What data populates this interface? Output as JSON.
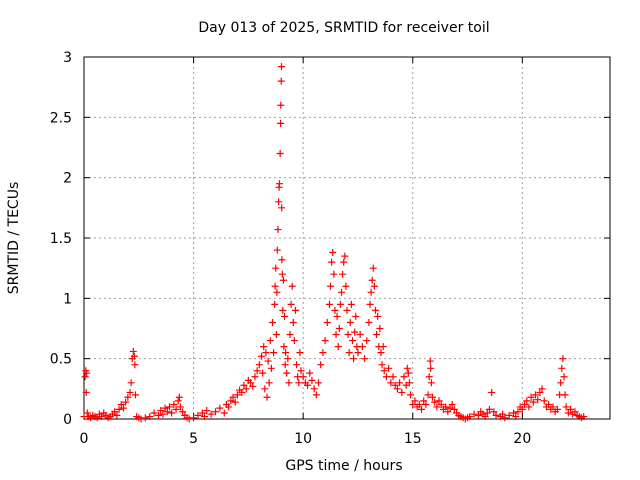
{
  "chart_data": {
    "type": "scatter",
    "title": "Day 013 of 2025, SRMTID for receiver toil",
    "xlabel": "GPS time / hours",
    "ylabel": "SRMTID / TECUs",
    "xlim": [
      0,
      24
    ],
    "ylim": [
      0,
      3
    ],
    "xticks": [
      0,
      5,
      10,
      15,
      20
    ],
    "yticks": [
      0,
      0.5,
      1,
      1.5,
      2,
      2.5,
      3
    ],
    "ytick_labels": [
      "0",
      "0.5",
      "1",
      "1.5",
      "2",
      "2.5",
      "3"
    ],
    "grid": true,
    "marker": "+",
    "color": "#ff0000",
    "series": [
      {
        "name": "SRMTID",
        "points": [
          [
            0.0,
            0.02
          ],
          [
            0.05,
            0.35
          ],
          [
            0.08,
            0.4
          ],
          [
            0.1,
            0.22
          ],
          [
            0.12,
            0.38
          ],
          [
            0.15,
            0.05
          ],
          [
            0.2,
            0.02
          ],
          [
            0.3,
            0.01
          ],
          [
            0.4,
            0.03
          ],
          [
            0.5,
            0.02
          ],
          [
            0.6,
            0.01
          ],
          [
            0.7,
            0.04
          ],
          [
            0.8,
            0.02
          ],
          [
            0.9,
            0.05
          ],
          [
            1.0,
            0.03
          ],
          [
            1.1,
            0.01
          ],
          [
            1.2,
            0.02
          ],
          [
            1.3,
            0.04
          ],
          [
            1.4,
            0.06
          ],
          [
            1.5,
            0.03
          ],
          [
            1.6,
            0.08
          ],
          [
            1.7,
            0.12
          ],
          [
            1.8,
            0.09
          ],
          [
            1.9,
            0.14
          ],
          [
            2.0,
            0.18
          ],
          [
            2.1,
            0.22
          ],
          [
            2.15,
            0.3
          ],
          [
            2.2,
            0.5
          ],
          [
            2.25,
            0.56
          ],
          [
            2.3,
            0.52
          ],
          [
            2.32,
            0.45
          ],
          [
            2.35,
            0.2
          ],
          [
            2.4,
            0.02
          ],
          [
            2.5,
            0.01
          ],
          [
            2.6,
            0.0
          ],
          [
            2.8,
            0.01
          ],
          [
            3.0,
            0.02
          ],
          [
            3.2,
            0.05
          ],
          [
            3.4,
            0.03
          ],
          [
            3.5,
            0.07
          ],
          [
            3.6,
            0.04
          ],
          [
            3.7,
            0.09
          ],
          [
            3.8,
            0.06
          ],
          [
            3.9,
            0.1
          ],
          [
            4.0,
            0.05
          ],
          [
            4.1,
            0.12
          ],
          [
            4.2,
            0.08
          ],
          [
            4.3,
            0.15
          ],
          [
            4.35,
            0.18
          ],
          [
            4.4,
            0.1
          ],
          [
            4.5,
            0.06
          ],
          [
            4.6,
            0.03
          ],
          [
            4.7,
            0.01
          ],
          [
            4.8,
            0.0
          ],
          [
            5.0,
            0.01
          ],
          [
            5.2,
            0.03
          ],
          [
            5.4,
            0.05
          ],
          [
            5.5,
            0.02
          ],
          [
            5.6,
            0.07
          ],
          [
            5.8,
            0.04
          ],
          [
            6.0,
            0.06
          ],
          [
            6.2,
            0.09
          ],
          [
            6.4,
            0.05
          ],
          [
            6.5,
            0.12
          ],
          [
            6.6,
            0.1
          ],
          [
            6.7,
            0.15
          ],
          [
            6.8,
            0.18
          ],
          [
            6.9,
            0.14
          ],
          [
            7.0,
            0.2
          ],
          [
            7.1,
            0.24
          ],
          [
            7.2,
            0.22
          ],
          [
            7.3,
            0.28
          ],
          [
            7.4,
            0.25
          ],
          [
            7.5,
            0.32
          ],
          [
            7.6,
            0.3
          ],
          [
            7.7,
            0.27
          ],
          [
            7.8,
            0.35
          ],
          [
            7.9,
            0.4
          ],
          [
            8.0,
            0.45
          ],
          [
            8.1,
            0.52
          ],
          [
            8.15,
            0.38
          ],
          [
            8.2,
            0.6
          ],
          [
            8.25,
            0.25
          ],
          [
            8.3,
            0.55
          ],
          [
            8.35,
            0.18
          ],
          [
            8.4,
            0.48
          ],
          [
            8.45,
            0.3
          ],
          [
            8.5,
            0.65
          ],
          [
            8.55,
            0.42
          ],
          [
            8.6,
            0.8
          ],
          [
            8.65,
            0.55
          ],
          [
            8.7,
            0.95
          ],
          [
            8.72,
            1.1
          ],
          [
            8.75,
            1.25
          ],
          [
            8.78,
            0.7
          ],
          [
            8.8,
            1.05
          ],
          [
            8.82,
            1.4
          ],
          [
            8.85,
            1.57
          ],
          [
            8.88,
            1.8
          ],
          [
            8.9,
            1.92
          ],
          [
            8.92,
            1.95
          ],
          [
            8.95,
            2.2
          ],
          [
            8.97,
            2.45
          ],
          [
            8.98,
            2.6
          ],
          [
            9.0,
            2.8
          ],
          [
            9.01,
            2.92
          ],
          [
            9.02,
            1.75
          ],
          [
            9.03,
            1.32
          ],
          [
            9.05,
            1.2
          ],
          [
            9.07,
            0.9
          ],
          [
            9.1,
            1.15
          ],
          [
            9.12,
            0.6
          ],
          [
            9.15,
            0.85
          ],
          [
            9.18,
            0.45
          ],
          [
            9.2,
            0.55
          ],
          [
            9.25,
            0.38
          ],
          [
            9.3,
            0.5
          ],
          [
            9.35,
            0.3
          ],
          [
            9.4,
            0.7
          ],
          [
            9.45,
            0.95
          ],
          [
            9.5,
            1.1
          ],
          [
            9.55,
            0.8
          ],
          [
            9.6,
            0.65
          ],
          [
            9.65,
            0.9
          ],
          [
            9.7,
            0.45
          ],
          [
            9.75,
            0.35
          ],
          [
            9.8,
            0.3
          ],
          [
            9.85,
            0.55
          ],
          [
            9.9,
            0.4
          ],
          [
            10.0,
            0.35
          ],
          [
            10.1,
            0.3
          ],
          [
            10.2,
            0.28
          ],
          [
            10.3,
            0.38
          ],
          [
            10.4,
            0.32
          ],
          [
            10.5,
            0.25
          ],
          [
            10.6,
            0.2
          ],
          [
            10.7,
            0.3
          ],
          [
            10.8,
            0.45
          ],
          [
            10.9,
            0.55
          ],
          [
            11.0,
            0.65
          ],
          [
            11.1,
            0.8
          ],
          [
            11.2,
            0.95
          ],
          [
            11.25,
            1.1
          ],
          [
            11.3,
            1.3
          ],
          [
            11.35,
            1.38
          ],
          [
            11.4,
            1.2
          ],
          [
            11.45,
            0.9
          ],
          [
            11.5,
            0.7
          ],
          [
            11.55,
            0.85
          ],
          [
            11.6,
            0.6
          ],
          [
            11.65,
            0.75
          ],
          [
            11.7,
            0.95
          ],
          [
            11.75,
            1.05
          ],
          [
            11.8,
            1.2
          ],
          [
            11.85,
            1.3
          ],
          [
            11.9,
            1.35
          ],
          [
            11.95,
            1.1
          ],
          [
            12.0,
            0.9
          ],
          [
            12.05,
            0.7
          ],
          [
            12.1,
            0.55
          ],
          [
            12.15,
            0.8
          ],
          [
            12.2,
            0.95
          ],
          [
            12.25,
            0.65
          ],
          [
            12.3,
            0.5
          ],
          [
            12.35,
            0.72
          ],
          [
            12.4,
            0.85
          ],
          [
            12.45,
            0.6
          ],
          [
            12.5,
            0.55
          ],
          [
            12.6,
            0.7
          ],
          [
            12.7,
            0.6
          ],
          [
            12.8,
            0.5
          ],
          [
            12.9,
            0.65
          ],
          [
            13.0,
            0.8
          ],
          [
            13.05,
            0.95
          ],
          [
            13.1,
            1.05
          ],
          [
            13.15,
            1.15
          ],
          [
            13.2,
            1.25
          ],
          [
            13.25,
            1.1
          ],
          [
            13.3,
            0.9
          ],
          [
            13.35,
            0.7
          ],
          [
            13.4,
            0.85
          ],
          [
            13.45,
            0.6
          ],
          [
            13.5,
            0.75
          ],
          [
            13.55,
            0.55
          ],
          [
            13.6,
            0.45
          ],
          [
            13.65,
            0.6
          ],
          [
            13.7,
            0.4
          ],
          [
            13.8,
            0.35
          ],
          [
            13.9,
            0.42
          ],
          [
            14.0,
            0.3
          ],
          [
            14.1,
            0.35
          ],
          [
            14.2,
            0.28
          ],
          [
            14.3,
            0.25
          ],
          [
            14.4,
            0.3
          ],
          [
            14.5,
            0.22
          ],
          [
            14.6,
            0.35
          ],
          [
            14.7,
            0.28
          ],
          [
            14.75,
            0.42
          ],
          [
            14.8,
            0.38
          ],
          [
            14.85,
            0.3
          ],
          [
            14.9,
            0.2
          ],
          [
            15.0,
            0.12
          ],
          [
            15.1,
            0.15
          ],
          [
            15.2,
            0.1
          ],
          [
            15.3,
            0.12
          ],
          [
            15.4,
            0.08
          ],
          [
            15.5,
            0.15
          ],
          [
            15.6,
            0.12
          ],
          [
            15.7,
            0.2
          ],
          [
            15.75,
            0.35
          ],
          [
            15.8,
            0.48
          ],
          [
            15.82,
            0.42
          ],
          [
            15.85,
            0.3
          ],
          [
            15.9,
            0.18
          ],
          [
            16.0,
            0.14
          ],
          [
            16.1,
            0.1
          ],
          [
            16.2,
            0.15
          ],
          [
            16.3,
            0.12
          ],
          [
            16.4,
            0.08
          ],
          [
            16.5,
            0.1
          ],
          [
            16.6,
            0.06
          ],
          [
            16.7,
            0.09
          ],
          [
            16.8,
            0.12
          ],
          [
            16.9,
            0.08
          ],
          [
            17.0,
            0.05
          ],
          [
            17.1,
            0.03
          ],
          [
            17.2,
            0.02
          ],
          [
            17.3,
            0.01
          ],
          [
            17.4,
            0.0
          ],
          [
            17.5,
            0.01
          ],
          [
            17.6,
            0.02
          ],
          [
            17.8,
            0.04
          ],
          [
            18.0,
            0.03
          ],
          [
            18.1,
            0.06
          ],
          [
            18.2,
            0.04
          ],
          [
            18.3,
            0.02
          ],
          [
            18.4,
            0.05
          ],
          [
            18.5,
            0.08
          ],
          [
            18.6,
            0.22
          ],
          [
            18.7,
            0.06
          ],
          [
            18.8,
            0.03
          ],
          [
            19.0,
            0.02
          ],
          [
            19.1,
            0.04
          ],
          [
            19.2,
            0.01
          ],
          [
            19.4,
            0.03
          ],
          [
            19.6,
            0.05
          ],
          [
            19.7,
            0.02
          ],
          [
            19.8,
            0.06
          ],
          [
            19.9,
            0.1
          ],
          [
            20.0,
            0.08
          ],
          [
            20.1,
            0.12
          ],
          [
            20.2,
            0.15
          ],
          [
            20.3,
            0.1
          ],
          [
            20.4,
            0.18
          ],
          [
            20.5,
            0.14
          ],
          [
            20.6,
            0.2
          ],
          [
            20.7,
            0.16
          ],
          [
            20.8,
            0.22
          ],
          [
            20.9,
            0.25
          ],
          [
            21.0,
            0.15
          ],
          [
            21.1,
            0.1
          ],
          [
            21.2,
            0.12
          ],
          [
            21.3,
            0.08
          ],
          [
            21.4,
            0.1
          ],
          [
            21.5,
            0.06
          ],
          [
            21.6,
            0.08
          ],
          [
            21.7,
            0.2
          ],
          [
            21.75,
            0.3
          ],
          [
            21.8,
            0.42
          ],
          [
            21.85,
            0.5
          ],
          [
            21.9,
            0.35
          ],
          [
            21.95,
            0.2
          ],
          [
            22.0,
            0.1
          ],
          [
            22.1,
            0.05
          ],
          [
            22.2,
            0.08
          ],
          [
            22.3,
            0.04
          ],
          [
            22.4,
            0.06
          ],
          [
            22.5,
            0.03
          ],
          [
            22.6,
            0.02
          ],
          [
            22.7,
            0.01
          ],
          [
            22.8,
            0.02
          ]
        ]
      }
    ]
  }
}
